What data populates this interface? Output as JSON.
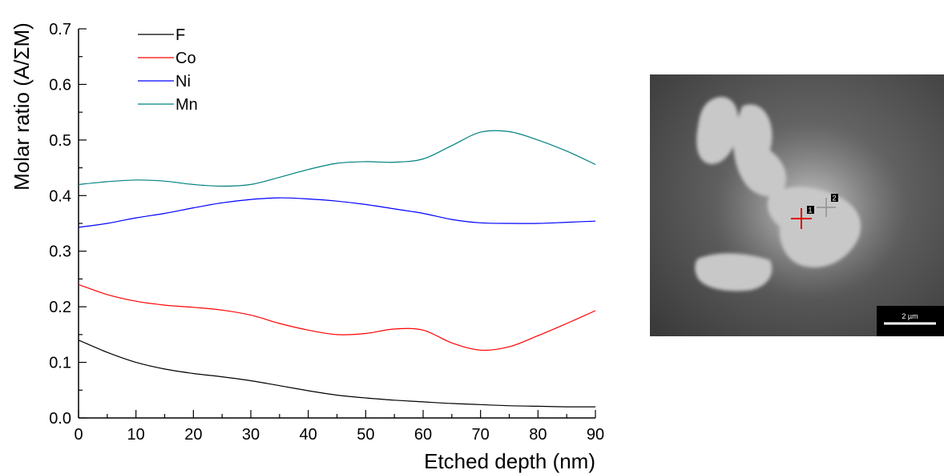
{
  "chart_data": {
    "type": "line",
    "xlabel": "Etched depth (nm)",
    "ylabel": "Molar ratio (A/ΣM)",
    "xlim": [
      0,
      90
    ],
    "ylim": [
      0,
      0.7
    ],
    "x_ticks": [
      "0",
      "10",
      "20",
      "30",
      "40",
      "50",
      "60",
      "70",
      "80",
      "90"
    ],
    "y_ticks": [
      "0.0",
      "0.1",
      "0.2",
      "0.3",
      "0.4",
      "0.5",
      "0.6",
      "0.7"
    ],
    "grid": false,
    "legend_position": "top-left",
    "x": [
      0,
      5,
      10,
      15,
      20,
      25,
      30,
      35,
      40,
      45,
      50,
      55,
      60,
      65,
      70,
      75,
      80,
      85,
      90
    ],
    "series": [
      {
        "name": "F",
        "color": "#000000",
        "values": [
          0.14,
          0.118,
          0.1,
          0.088,
          0.08,
          0.074,
          0.067,
          0.058,
          0.049,
          0.041,
          0.036,
          0.032,
          0.029,
          0.026,
          0.024,
          0.022,
          0.021,
          0.02,
          0.02
        ]
      },
      {
        "name": "Co",
        "color": "#ff0000",
        "values": [
          0.24,
          0.222,
          0.21,
          0.203,
          0.199,
          0.194,
          0.185,
          0.17,
          0.158,
          0.15,
          0.152,
          0.16,
          0.158,
          0.135,
          0.122,
          0.128,
          0.148,
          0.17,
          0.193
        ]
      },
      {
        "name": "Ni",
        "color": "#0000ff",
        "values": [
          0.343,
          0.35,
          0.36,
          0.368,
          0.378,
          0.387,
          0.393,
          0.396,
          0.394,
          0.39,
          0.384,
          0.376,
          0.368,
          0.357,
          0.351,
          0.35,
          0.35,
          0.352,
          0.354
        ]
      },
      {
        "name": "Mn",
        "color": "#008080",
        "values": [
          0.42,
          0.425,
          0.428,
          0.426,
          0.42,
          0.417,
          0.42,
          0.433,
          0.447,
          0.458,
          0.461,
          0.46,
          0.466,
          0.49,
          0.514,
          0.515,
          0.5,
          0.48,
          0.456
        ]
      }
    ]
  },
  "micrograph": {
    "scale_bar_label": "2 µm",
    "marker_labels": [
      "1",
      "2"
    ]
  }
}
